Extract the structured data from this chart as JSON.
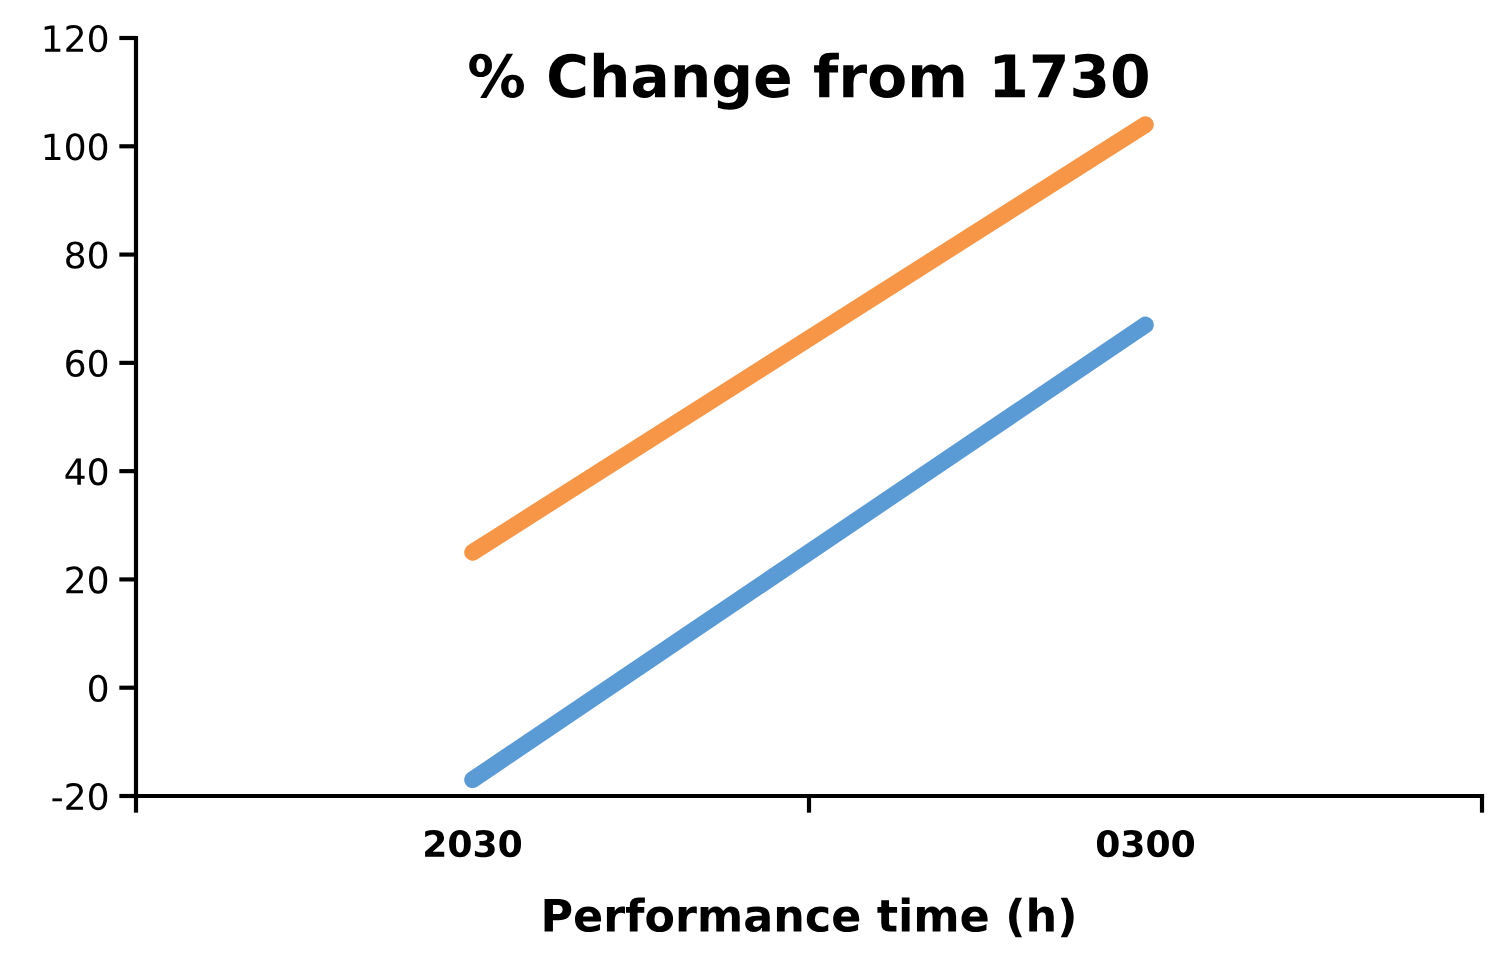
{
  "chart_data": {
    "type": "line",
    "title": "% Change from 1730",
    "xlabel": "Performance time (h)",
    "categories": [
      "2030",
      "0300"
    ],
    "series": [
      {
        "color": "#5b9bd5",
        "values": [
          -17,
          67
        ]
      },
      {
        "color": "#f79646",
        "values": [
          25,
          104
        ]
      }
    ],
    "ylim": [
      -20,
      120
    ],
    "yticks": [
      -20,
      0,
      20,
      40,
      60,
      80,
      100,
      120
    ],
    "grid": false,
    "legend": false,
    "marker": "none",
    "line_style": "solid"
  }
}
